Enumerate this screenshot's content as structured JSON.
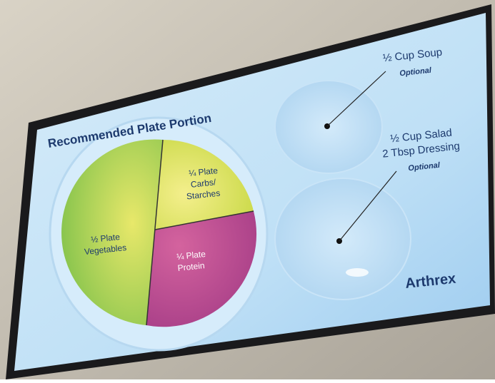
{
  "slide": {
    "title": "Recommended Plate Portion",
    "plate": {
      "sections": [
        {
          "lines": [
            "½ Plate",
            "Vegetables"
          ]
        },
        {
          "lines": [
            "¼ Plate",
            "Carbs/",
            "Starches"
          ]
        },
        {
          "lines": [
            "¼ Plate",
            "Protein"
          ]
        }
      ]
    },
    "bowls": [
      {
        "lines": [
          "½ Cup Soup"
        ],
        "note": "Optional"
      },
      {
        "lines": [
          "½ Cup Salad",
          "2 Tbsp Dressing"
        ],
        "note": "Optional"
      }
    ],
    "brand": "Arthrex"
  }
}
